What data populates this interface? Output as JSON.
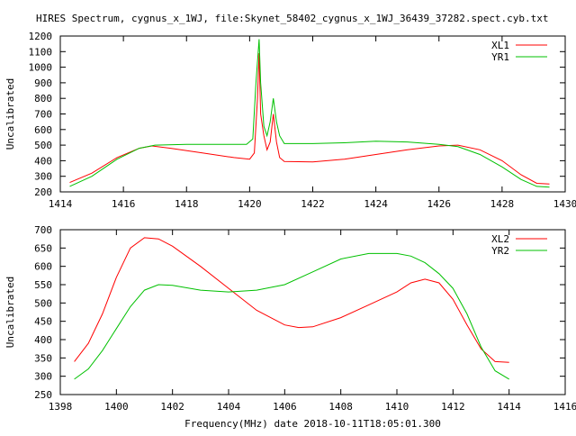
{
  "title": "HIRES Spectrum, cygnus_x_1WJ, file:Skynet_58402_cygnus_x_1WJ_36439_37282.spect.cyb.txt",
  "chart_data": [
    {
      "type": "line",
      "ylabel": "Uncalibrated",
      "xlabel": "",
      "xlim": [
        1414,
        1430
      ],
      "ylim": [
        200,
        1200
      ],
      "xticks": [
        1414,
        1416,
        1418,
        1420,
        1422,
        1424,
        1426,
        1428,
        1430
      ],
      "yticks": [
        200,
        300,
        400,
        500,
        600,
        700,
        800,
        900,
        1000,
        1100,
        1200
      ],
      "legend": "top-right",
      "series": [
        {
          "name": "XL1",
          "color": "#ff0000",
          "x": [
            1414.3,
            1415,
            1415.8,
            1416.5,
            1416.9,
            1417.5,
            1418.5,
            1419.5,
            1420.0,
            1420.15,
            1420.25,
            1420.3,
            1420.35,
            1420.45,
            1420.55,
            1420.65,
            1420.75,
            1420.85,
            1420.95,
            1421.1,
            1422,
            1423,
            1424,
            1425,
            1426,
            1426.6,
            1427.3,
            1428,
            1428.6,
            1429.1,
            1429.5
          ],
          "y": [
            260,
            320,
            420,
            480,
            495,
            480,
            450,
            420,
            410,
            450,
            800,
            1090,
            700,
            560,
            470,
            520,
            700,
            520,
            420,
            395,
            392,
            410,
            440,
            470,
            495,
            500,
            470,
            400,
            310,
            255,
            250
          ]
        },
        {
          "name": "YR1",
          "color": "#00c000",
          "x": [
            1414.3,
            1415,
            1415.8,
            1416.5,
            1417,
            1418,
            1419,
            1419.9,
            1420.1,
            1420.2,
            1420.3,
            1420.35,
            1420.45,
            1420.55,
            1420.65,
            1420.75,
            1420.85,
            1420.95,
            1421.1,
            1422,
            1423,
            1424,
            1425,
            1426,
            1426.6,
            1427.3,
            1428,
            1428.6,
            1429.1,
            1429.5
          ],
          "y": [
            235,
            300,
            410,
            480,
            500,
            505,
            505,
            505,
            540,
            900,
            1180,
            900,
            620,
            560,
            650,
            800,
            650,
            560,
            510,
            510,
            515,
            525,
            520,
            505,
            490,
            440,
            360,
            280,
            235,
            230
          ]
        }
      ]
    },
    {
      "type": "line",
      "ylabel": "Uncalibrated",
      "xlabel": "Frequency(MHz) date 2018-10-11T18:05:01.300",
      "xlim": [
        1398,
        1416
      ],
      "ylim": [
        250,
        700
      ],
      "xticks": [
        1398,
        1400,
        1402,
        1404,
        1406,
        1408,
        1410,
        1412,
        1414,
        1416
      ],
      "yticks": [
        250,
        300,
        350,
        400,
        450,
        500,
        550,
        600,
        650,
        700
      ],
      "legend": "top-right",
      "series": [
        {
          "name": "XL2",
          "color": "#ff0000",
          "x": [
            1398.5,
            1399,
            1399.5,
            1400,
            1400.5,
            1401,
            1401.5,
            1402,
            1403,
            1404,
            1405,
            1406,
            1406.5,
            1407,
            1408,
            1409,
            1410,
            1410.5,
            1411,
            1411.5,
            1412,
            1412.5,
            1413,
            1413.5,
            1414
          ],
          "y": [
            340,
            390,
            470,
            570,
            650,
            678,
            675,
            655,
            600,
            540,
            480,
            440,
            433,
            435,
            460,
            495,
            530,
            555,
            565,
            555,
            510,
            440,
            375,
            340,
            338
          ]
        },
        {
          "name": "YR2",
          "color": "#00c000",
          "x": [
            1398.5,
            1399,
            1399.5,
            1400,
            1400.5,
            1401,
            1401.5,
            1402,
            1403,
            1404,
            1405,
            1406,
            1407,
            1408,
            1409,
            1410,
            1410.5,
            1411,
            1411.5,
            1412,
            1412.5,
            1413,
            1413.5,
            1414
          ],
          "y": [
            292,
            320,
            370,
            430,
            490,
            535,
            550,
            548,
            535,
            530,
            535,
            550,
            585,
            620,
            635,
            635,
            628,
            610,
            580,
            540,
            470,
            380,
            315,
            292
          ]
        }
      ]
    }
  ]
}
